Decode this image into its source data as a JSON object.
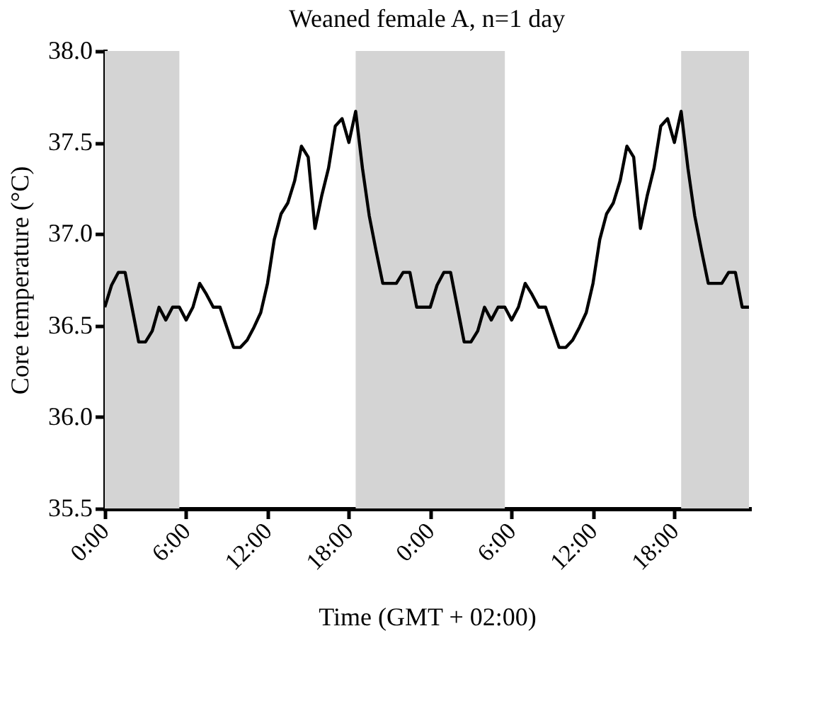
{
  "chart_data": {
    "type": "line",
    "title": "Weaned female A, n=1 day",
    "xlabel": "Time (GMT + 02:00)",
    "ylabel": "Core temperature (°C)",
    "x": [
      "2000-01-01T00:00",
      "2000-01-01T00:30",
      "2000-01-01T01:00",
      "2000-01-01T01:30",
      "2000-01-01T02:00",
      "2000-01-01T02:30",
      "2000-01-01T03:00",
      "2000-01-01T03:30",
      "2000-01-01T04:00",
      "2000-01-01T04:30",
      "2000-01-01T05:00",
      "2000-01-01T05:30",
      "2000-01-01T06:00",
      "2000-01-01T06:30",
      "2000-01-01T07:00",
      "2000-01-01T07:30",
      "2000-01-01T08:00",
      "2000-01-01T08:30",
      "2000-01-01T09:00",
      "2000-01-01T09:30",
      "2000-01-01T10:00",
      "2000-01-01T10:30",
      "2000-01-01T11:00",
      "2000-01-01T11:30",
      "2000-01-01T12:00",
      "2000-01-01T12:30",
      "2000-01-01T13:00",
      "2000-01-01T13:30",
      "2000-01-01T14:00",
      "2000-01-01T14:30",
      "2000-01-01T15:00",
      "2000-01-01T15:30",
      "2000-01-01T16:00",
      "2000-01-01T16:30",
      "2000-01-01T17:00",
      "2000-01-01T17:30",
      "2000-01-01T18:00",
      "2000-01-01T18:30",
      "2000-01-01T19:00",
      "2000-01-01T19:30",
      "2000-01-01T20:00",
      "2000-01-01T20:30",
      "2000-01-01T21:00",
      "2000-01-01T21:30",
      "2000-01-01T22:00",
      "2000-01-01T22:30",
      "2000-01-01T23:00",
      "2000-01-01T23:30",
      "2000-01-02T00:00",
      "2000-01-02T00:30",
      "2000-01-02T01:00",
      "2000-01-02T01:30",
      "2000-01-02T02:00",
      "2000-01-02T02:30",
      "2000-01-02T03:00",
      "2000-01-02T03:30",
      "2000-01-02T04:00",
      "2000-01-02T04:30",
      "2000-01-02T05:00",
      "2000-01-02T05:30",
      "2000-01-02T06:00",
      "2000-01-02T06:30",
      "2000-01-02T07:00",
      "2000-01-02T07:30",
      "2000-01-02T08:00",
      "2000-01-02T08:30",
      "2000-01-02T09:00",
      "2000-01-02T09:30",
      "2000-01-02T10:00",
      "2000-01-02T10:30",
      "2000-01-02T11:00",
      "2000-01-02T11:30",
      "2000-01-02T12:00",
      "2000-01-02T12:30",
      "2000-01-02T13:00",
      "2000-01-02T13:30",
      "2000-01-02T14:00",
      "2000-01-02T14:30",
      "2000-01-02T15:00",
      "2000-01-02T15:30",
      "2000-01-02T16:00",
      "2000-01-02T16:30",
      "2000-01-02T17:00",
      "2000-01-02T17:30",
      "2000-01-02T18:00",
      "2000-01-02T18:30",
      "2000-01-02T19:00",
      "2000-01-02T19:30",
      "2000-01-02T20:00",
      "2000-01-02T20:30",
      "2000-01-02T21:00",
      "2000-01-02T21:30",
      "2000-01-02T22:00",
      "2000-01-02T22:30",
      "2000-01-02T23:00",
      "2000-01-02T23:30"
    ],
    "series": [
      {
        "color": "#000000",
        "values": [
          36.6,
          36.72,
          36.79,
          36.79,
          36.6,
          36.41,
          36.41,
          36.47,
          36.6,
          36.53,
          36.6,
          36.6,
          36.53,
          36.6,
          36.73,
          36.67,
          36.6,
          36.6,
          36.49,
          36.38,
          36.38,
          36.42,
          36.49,
          36.57,
          36.73,
          36.97,
          37.11,
          37.17,
          37.29,
          37.48,
          37.42,
          37.03,
          37.21,
          37.36,
          37.59,
          37.63,
          37.5,
          37.67,
          37.36,
          37.1,
          36.91,
          36.73,
          36.73,
          36.73,
          36.79,
          36.79,
          36.6,
          36.6,
          36.6,
          36.72,
          36.79,
          36.79,
          36.6,
          36.41,
          36.41,
          36.47,
          36.6,
          36.53,
          36.6,
          36.6,
          36.53,
          36.6,
          36.73,
          36.67,
          36.6,
          36.6,
          36.49,
          36.38,
          36.38,
          36.42,
          36.49,
          36.57,
          36.73,
          36.97,
          37.11,
          37.17,
          37.29,
          37.48,
          37.42,
          37.03,
          37.21,
          37.36,
          37.59,
          37.63,
          37.5,
          37.67,
          37.36,
          37.1,
          36.91,
          36.73,
          36.73,
          36.73,
          36.79,
          36.79,
          36.6,
          36.6
        ]
      }
    ],
    "xlim": [
      "2000-01-01T00:00",
      "2000-01-02T23:30"
    ],
    "xticks": [
      {
        "value": "2000-01-01T00:00",
        "label": "0:00"
      },
      {
        "value": "2000-01-01T06:00",
        "label": "6:00"
      },
      {
        "value": "2000-01-01T12:00",
        "label": "12:00"
      },
      {
        "value": "2000-01-01T18:00",
        "label": "18:00"
      },
      {
        "value": "2000-01-02T00:00",
        "label": "0:00"
      },
      {
        "value": "2000-01-02T06:00",
        "label": "6:00"
      },
      {
        "value": "2000-01-02T12:00",
        "label": "12:00"
      },
      {
        "value": "2000-01-02T18:00",
        "label": "18:00"
      }
    ],
    "ylim": [
      35.5,
      38.0
    ],
    "yticks": [
      35.5,
      {
        "value": 36,
        "label": "36.0"
      },
      36.5,
      {
        "value": 37,
        "label": "37.0"
      },
      37.5,
      {
        "value": 38,
        "label": "38.0"
      }
    ],
    "bands": [
      {
        "axis": "x",
        "from": "2000-01-01T00:00",
        "to": "2000-01-01T05:30",
        "color": "#d4d4d4"
      },
      {
        "axis": "x",
        "from": "2000-01-01T18:30",
        "to": "2000-01-02T05:30",
        "color": "#d4d4d4"
      },
      {
        "axis": "x",
        "from": "2000-01-02T18:30",
        "to": "2000-01-02T23:30",
        "color": "#d4d4d4"
      }
    ],
    "line_style": "solid",
    "marker": "none"
  }
}
